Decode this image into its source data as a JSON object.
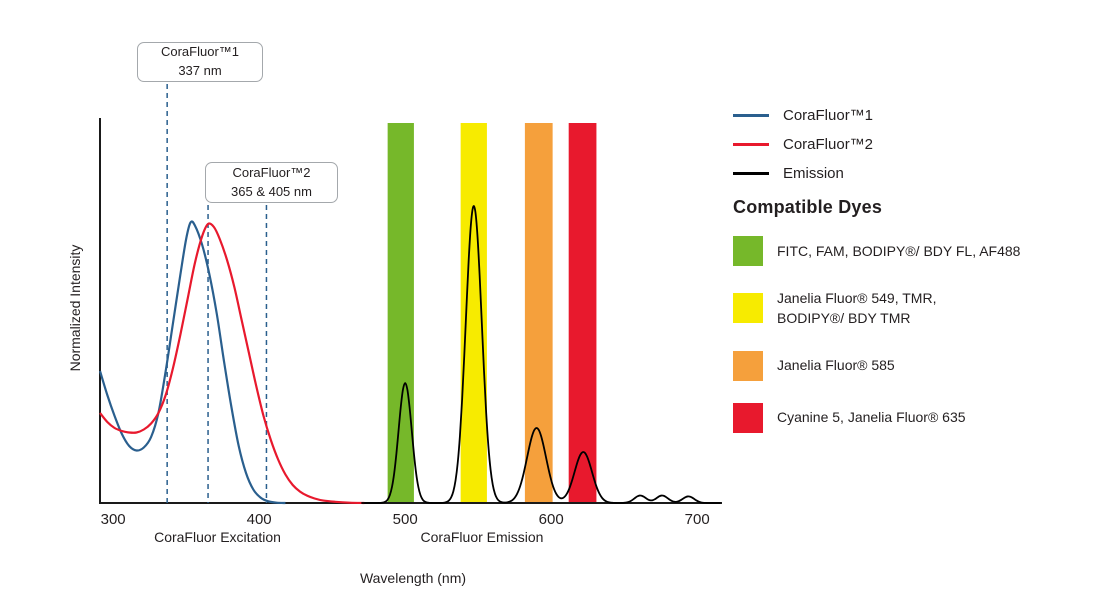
{
  "chart_data": {
    "type": "line",
    "title": "",
    "xlabel": "Wavelength (nm)",
    "ylabel": "Normalized Intensity",
    "xlim": [
      291,
      717
    ],
    "ylim": [
      0,
      1.28
    ],
    "x_ticks": [
      300,
      400,
      500,
      600,
      700
    ],
    "grid": false,
    "legend_position": "right",
    "section_labels": [
      {
        "label": "CoraFluor Excitation"
      },
      {
        "label": "CoraFluor Emission"
      }
    ],
    "series": [
      {
        "id": "corafluor1-excitation",
        "name": "CoraFluor™1",
        "color": "#2a5f8e",
        "points": [
          [
            291,
            0.44
          ],
          [
            296,
            0.36
          ],
          [
            301,
            0.29
          ],
          [
            306,
            0.23
          ],
          [
            311,
            0.19
          ],
          [
            316,
            0.175
          ],
          [
            321,
            0.185
          ],
          [
            326,
            0.22
          ],
          [
            331,
            0.3
          ],
          [
            336,
            0.44
          ],
          [
            341,
            0.6
          ],
          [
            346,
            0.76
          ],
          [
            350,
            0.88
          ],
          [
            353,
            0.935
          ],
          [
            356,
            0.925
          ],
          [
            361,
            0.86
          ],
          [
            366,
            0.76
          ],
          [
            371,
            0.63
          ],
          [
            376,
            0.47
          ],
          [
            381,
            0.32
          ],
          [
            386,
            0.19
          ],
          [
            391,
            0.1
          ],
          [
            396,
            0.045
          ],
          [
            401,
            0.018
          ],
          [
            406,
            0.006
          ],
          [
            412,
            0.001
          ],
          [
            418,
            0
          ]
        ]
      },
      {
        "id": "corafluor2-excitation",
        "name": "CoraFluor™2",
        "color": "#e8192d",
        "points": [
          [
            291,
            0.3
          ],
          [
            296,
            0.27
          ],
          [
            301,
            0.25
          ],
          [
            306,
            0.24
          ],
          [
            311,
            0.235
          ],
          [
            316,
            0.235
          ],
          [
            321,
            0.245
          ],
          [
            326,
            0.265
          ],
          [
            331,
            0.3
          ],
          [
            336,
            0.36
          ],
          [
            341,
            0.45
          ],
          [
            346,
            0.56
          ],
          [
            351,
            0.68
          ],
          [
            356,
            0.8
          ],
          [
            361,
            0.89
          ],
          [
            365,
            0.93
          ],
          [
            369,
            0.92
          ],
          [
            373,
            0.88
          ],
          [
            378,
            0.81
          ],
          [
            383,
            0.72
          ],
          [
            388,
            0.61
          ],
          [
            393,
            0.5
          ],
          [
            398,
            0.39
          ],
          [
            403,
            0.29
          ],
          [
            408,
            0.21
          ],
          [
            413,
            0.145
          ],
          [
            418,
            0.095
          ],
          [
            423,
            0.06
          ],
          [
            428,
            0.038
          ],
          [
            433,
            0.024
          ],
          [
            438,
            0.015
          ],
          [
            444,
            0.008
          ],
          [
            452,
            0.004
          ],
          [
            462,
            0.001
          ],
          [
            472,
            0
          ]
        ]
      },
      {
        "id": "emission",
        "name": "Emission",
        "color": "#000000",
        "peaks": [
          {
            "center": 500,
            "height": 0.4,
            "width": 4.5
          },
          {
            "center": 547,
            "height": 0.99,
            "width": 5.5
          },
          {
            "center": 590,
            "height": 0.25,
            "width": 6.5
          },
          {
            "center": 622,
            "height": 0.17,
            "width": 6
          },
          {
            "center": 661,
            "height": 0.025,
            "width": 4
          },
          {
            "center": 676,
            "height": 0.025,
            "width": 4
          },
          {
            "center": 694,
            "height": 0.022,
            "width": 4
          }
        ]
      }
    ],
    "bands": [
      {
        "from": 488,
        "to": 506,
        "color": "#76b82a",
        "label": "FITC, FAM, BODIPY®/ BDY FL, AF488"
      },
      {
        "from": 538,
        "to": 556,
        "color": "#f7eb00",
        "label": "Janelia Fluor® 549, TMR, BODIPY®/ BDY TMR"
      },
      {
        "from": 582,
        "to": 601,
        "color": "#f5a03c",
        "label": "Janelia Fluor® 585"
      },
      {
        "from": 612,
        "to": 631,
        "color": "#e8192d",
        "label": "Cyanine 5, Janelia Fluor® 635"
      }
    ],
    "annotations": [
      {
        "lines_at": [
          337
        ],
        "line1": "CoraFluor™1",
        "line2": "337 nm"
      },
      {
        "lines_at": [
          365,
          405
        ],
        "line1": "CoraFluor™2",
        "line2": "365 & 405 nm"
      }
    ]
  },
  "legend": {
    "series": [
      {
        "label": "CoraFluor™1",
        "color": "#2a5f8e"
      },
      {
        "label": "CoraFluor™2",
        "color": "#e8192d"
      },
      {
        "label": "Emission",
        "color": "#000000"
      }
    ],
    "dyes_heading": "Compatible Dyes",
    "dyes": [
      {
        "color": "#76b82a",
        "label": "FITC, FAM, BODIPY®/ BDY FL, AF488"
      },
      {
        "color": "#f7eb00",
        "label": "Janelia Fluor® 549, TMR,\nBODIPY®/ BDY TMR"
      },
      {
        "color": "#f5a03c",
        "label": "Janelia Fluor® 585"
      },
      {
        "color": "#e8192d",
        "label": "Cyanine 5, Janelia Fluor® 635"
      }
    ]
  }
}
